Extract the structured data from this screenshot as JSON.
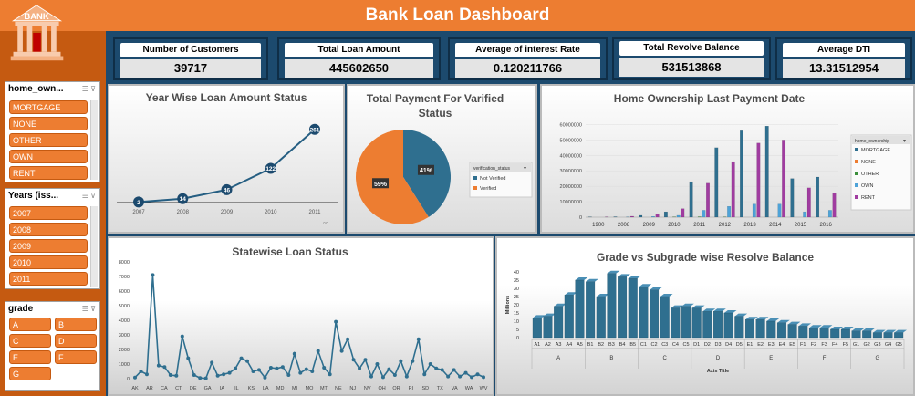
{
  "header": {
    "title": "Bank Loan Dashboard"
  },
  "logo": {
    "text": "BANK",
    "icon": "bank-building-icon"
  },
  "colors": {
    "orange": "#ed7d31",
    "darkblue": "#1c4a6e",
    "blue": "#255e82",
    "mortgage": "#2f6f8f",
    "none": "#ed7d31",
    "other": "#3b8f3b",
    "own": "#4ea3d8",
    "rent": "#a03ca0"
  },
  "slicers": {
    "home_ownership": {
      "title": "home_own...",
      "items": [
        "MORTGAGE",
        "NONE",
        "OTHER",
        "OWN",
        "RENT"
      ]
    },
    "years": {
      "title": "Years (iss...",
      "items": [
        "2007",
        "2008",
        "2009",
        "2010",
        "2011"
      ]
    },
    "grade": {
      "title": "grade",
      "items": [
        "A",
        "B",
        "C",
        "D",
        "E",
        "F",
        "G"
      ]
    }
  },
  "kpis": [
    {
      "label": "Number of Customers",
      "value": "39717"
    },
    {
      "label": "Total Loan Amount",
      "value": "445602650"
    },
    {
      "label": "Average of interest Rate",
      "value": "0.120211766"
    },
    {
      "label": "Total Revolve Balance",
      "value": "531513868"
    },
    {
      "label": "Average DTI",
      "value": "13.31512954"
    }
  ],
  "chart_data": [
    {
      "id": "year_wise",
      "type": "line",
      "title": "Year Wise Loan Amount Status",
      "categories": [
        "2007",
        "2008",
        "2009",
        "2010",
        "2011"
      ],
      "values": [
        2,
        14,
        46,
        122,
        261
      ],
      "data_labels": [
        "2",
        "14",
        "46",
        "122",
        "261"
      ]
    },
    {
      "id": "verified",
      "type": "pie",
      "title": "Total Payment For Varified Status",
      "legend_title": "verification_status",
      "labels": [
        "Not Verified",
        "Verified"
      ],
      "values": [
        41,
        59
      ],
      "data_labels": [
        "41%",
        "59%"
      ]
    },
    {
      "id": "home_ownership",
      "type": "bar",
      "title": "Home Ownership Last Payment Date",
      "legend_title": "home_ownership",
      "categories": [
        "1900",
        "2008",
        "2009",
        "2010",
        "2011",
        "2012",
        "2013",
        "2014",
        "2015",
        "2016"
      ],
      "yticks": [
        "0",
        "10000000",
        "20000000",
        "30000000",
        "40000000",
        "50000000",
        "60000000"
      ],
      "ylim": [
        0,
        65000000
      ],
      "series": [
        {
          "name": "MORTGAGE",
          "values": [
            200000,
            300000,
            1200000,
            3500000,
            23000000,
            45000000,
            56000000,
            59000000,
            25000000,
            26000000
          ]
        },
        {
          "name": "NONE",
          "values": [
            0,
            0,
            0,
            0,
            0,
            0,
            0,
            0,
            0,
            0
          ]
        },
        {
          "name": "OTHER",
          "values": [
            0,
            100000,
            100000,
            200000,
            300000,
            200000,
            100000,
            0,
            0,
            0
          ]
        },
        {
          "name": "OWN",
          "values": [
            100000,
            200000,
            500000,
            1200000,
            4500000,
            7000000,
            8500000,
            8500000,
            3500000,
            4500000
          ]
        },
        {
          "name": "RENT",
          "values": [
            200000,
            600000,
            2000000,
            5500000,
            22000000,
            36000000,
            48000000,
            50000000,
            19000000,
            15500000
          ]
        }
      ]
    },
    {
      "id": "statewise",
      "type": "line",
      "title": "Statewise Loan Status",
      "yticks": [
        "0",
        "1000",
        "2000",
        "3000",
        "4000",
        "5000",
        "6000",
        "7000",
        "8000"
      ],
      "ylim": [
        0,
        8000
      ],
      "x_labels": [
        "AK",
        "AR",
        "CA",
        "CT",
        "DE",
        "GA",
        "IA",
        "IL",
        "KS",
        "LA",
        "MD",
        "MI",
        "MO",
        "MT",
        "NE",
        "NJ",
        "NV",
        "OH",
        "OR",
        "RI",
        "SD",
        "TX",
        "VA",
        "WA",
        "WV"
      ],
      "values": [
        80,
        500,
        300,
        7100,
        900,
        800,
        250,
        200,
        2900,
        1400,
        250,
        50,
        20,
        1100,
        200,
        300,
        400,
        700,
        1400,
        1200,
        500,
        600,
        70,
        750,
        700,
        800,
        250,
        1700,
        400,
        650,
        500,
        1900,
        750,
        300,
        3900,
        1900,
        2700,
        1300,
        700,
        1300,
        150,
        1000,
        100,
        650,
        250,
        1200,
        150,
        1200,
        2700,
        300,
        1000,
        700,
        600,
        150,
        600,
        150,
        400,
        100,
        300,
        100
      ]
    },
    {
      "id": "grade_subgrade",
      "type": "bar",
      "title": "Grade vs Subgrade wise Resolve Balance",
      "ylabel": "Millions",
      "xlabel": "Axis Title",
      "yticks": [
        "0",
        "5",
        "10",
        "15",
        "20",
        "25",
        "30",
        "35",
        "40"
      ],
      "ylim": [
        0,
        40
      ],
      "categories": [
        "A1",
        "A2",
        "A3",
        "A4",
        "A5",
        "B1",
        "B2",
        "B3",
        "B4",
        "B5",
        "C1",
        "C2",
        "C3",
        "C4",
        "C5",
        "D1",
        "D2",
        "D3",
        "D4",
        "D5",
        "E1",
        "E2",
        "E3",
        "E4",
        "E5",
        "F1",
        "F2",
        "F3",
        "F4",
        "F5",
        "G1",
        "G2",
        "G3",
        "G4",
        "G5"
      ],
      "groups": [
        "A",
        "B",
        "C",
        "D",
        "E",
        "F",
        "G"
      ],
      "values": [
        12,
        13,
        19,
        26,
        35,
        34,
        25,
        39,
        37,
        36,
        31,
        29,
        25,
        18,
        19,
        18,
        16,
        16,
        15,
        13,
        11,
        11,
        10,
        9,
        8,
        7,
        6,
        6,
        5,
        5,
        4,
        4,
        3,
        3,
        3
      ]
    }
  ]
}
